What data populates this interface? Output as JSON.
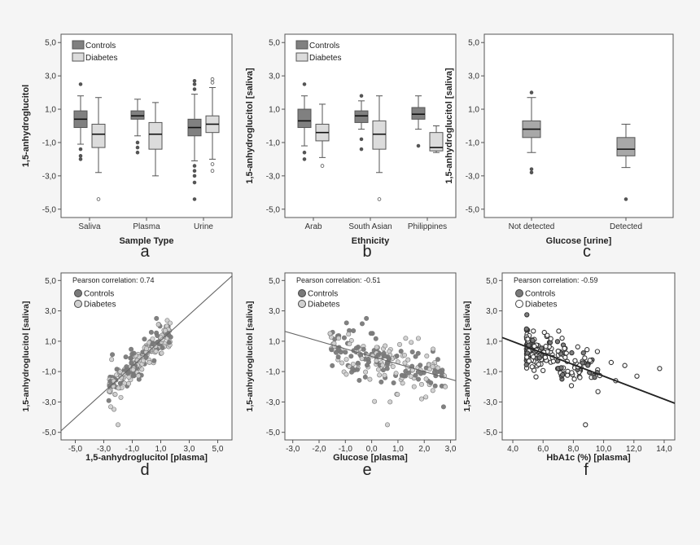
{
  "chart_data": [
    {
      "panel": "a",
      "type": "boxplot",
      "ylabel": "1,5-anhydroglucitol",
      "xlabel": "Sample Type",
      "yticks": [
        "5,0",
        "3,0",
        "1,0",
        "-1,0",
        "-3,0",
        "-5,0"
      ],
      "ylim": [
        -5.5,
        5.5
      ],
      "categories": [
        "Saliva",
        "Plasma",
        "Urine"
      ],
      "legend": [
        {
          "name": "Controls",
          "color": "#808080"
        },
        {
          "name": "Diabetes",
          "color": "#dcdcdc"
        }
      ],
      "boxes": [
        {
          "cat": 0,
          "series": 0,
          "whislo": -1.1,
          "q1": -0.1,
          "med": 0.4,
          "q3": 0.9,
          "whishi": 1.8,
          "outliers": [
            2.5,
            -1.4,
            -1.8,
            -2.0
          ]
        },
        {
          "cat": 0,
          "series": 1,
          "whislo": -2.8,
          "q1": -1.3,
          "med": -0.5,
          "q3": 0.1,
          "whishi": 1.7,
          "outliers": [
            -4.4
          ]
        },
        {
          "cat": 1,
          "series": 0,
          "whislo": -0.6,
          "q1": 0.4,
          "med": 0.6,
          "q3": 0.9,
          "whishi": 1.6,
          "outliers": [
            -1.0,
            -1.3,
            -1.6
          ]
        },
        {
          "cat": 1,
          "series": 1,
          "whislo": -3.0,
          "q1": -1.4,
          "med": -0.5,
          "q3": 0.2,
          "whishi": 1.4,
          "outliers": []
        },
        {
          "cat": 2,
          "series": 0,
          "whislo": -2.1,
          "q1": -0.6,
          "med": -0.1,
          "q3": 0.4,
          "whishi": 1.9,
          "outliers": [
            2.2,
            2.5,
            2.7,
            -2.4,
            -2.7,
            -3.0,
            -3.4,
            -4.4
          ]
        },
        {
          "cat": 2,
          "series": 1,
          "whislo": -2.0,
          "q1": -0.4,
          "med": 0.1,
          "q3": 0.6,
          "whishi": 2.3,
          "outliers": [
            2.6,
            2.8,
            -2.3,
            -2.7
          ]
        }
      ]
    },
    {
      "panel": "b",
      "type": "boxplot",
      "ylabel": "1,5-anhydroglucitol [saliva]",
      "xlabel": "Ethnicity",
      "yticks": [
        "5,0",
        "3,0",
        "1,0",
        "-1,0",
        "-3,0",
        "-5,0"
      ],
      "ylim": [
        -5.5,
        5.5
      ],
      "categories": [
        "Arab",
        "South Asian",
        "Philippines"
      ],
      "legend": [
        {
          "name": "Controls",
          "color": "#808080"
        },
        {
          "name": "Diabetes",
          "color": "#dcdcdc"
        }
      ],
      "boxes": [
        {
          "cat": 0,
          "series": 0,
          "whislo": -1.2,
          "q1": -0.1,
          "med": 0.3,
          "q3": 1.0,
          "whishi": 1.8,
          "outliers": [
            2.5,
            -1.6,
            -2.0
          ]
        },
        {
          "cat": 0,
          "series": 1,
          "whislo": -1.9,
          "q1": -0.9,
          "med": -0.4,
          "q3": 0.1,
          "whishi": 1.3,
          "outliers": [
            -2.4
          ]
        },
        {
          "cat": 1,
          "series": 0,
          "whislo": -0.2,
          "q1": 0.2,
          "med": 0.6,
          "q3": 0.9,
          "whishi": 1.5,
          "outliers": [
            1.8,
            -0.8,
            -1.4
          ]
        },
        {
          "cat": 1,
          "series": 1,
          "whislo": -2.8,
          "q1": -1.4,
          "med": -0.5,
          "q3": 0.3,
          "whishi": 1.8,
          "outliers": [
            -4.4
          ]
        },
        {
          "cat": 2,
          "series": 0,
          "whislo": -0.2,
          "q1": 0.4,
          "med": 0.7,
          "q3": 1.1,
          "whishi": 1.8,
          "outliers": [
            -1.2
          ]
        },
        {
          "cat": 2,
          "series": 1,
          "whislo": -1.6,
          "q1": -1.5,
          "med": -1.3,
          "q3": -0.4,
          "whishi": 0.0,
          "outliers": []
        }
      ]
    },
    {
      "panel": "c",
      "type": "boxplot",
      "ylabel": "1,5-anhydroglucitol [saliva]",
      "xlabel": "Glucose [urine]",
      "yticks": [
        "5,0",
        "3,0",
        "1,0",
        "-1,0",
        "-3,0",
        "-5,0"
      ],
      "ylim": [
        -5.5,
        5.5
      ],
      "categories": [
        "Not detected",
        "Detected"
      ],
      "legend": [],
      "boxes": [
        {
          "cat": 0,
          "series": 0,
          "whislo": -1.6,
          "q1": -0.7,
          "med": -0.2,
          "q3": 0.3,
          "whishi": 1.7,
          "outliers": [
            2.0,
            -2.6,
            -2.8
          ]
        },
        {
          "cat": 1,
          "series": 0,
          "whislo": -2.5,
          "q1": -1.8,
          "med": -1.4,
          "q3": -0.7,
          "whishi": 0.1,
          "outliers": [
            -4.4
          ]
        }
      ]
    },
    {
      "panel": "d",
      "type": "scatter",
      "ylabel": "1,5-anhydroglucitol [saliva]",
      "xlabel": "1,5-anhydroglucitol [plasma]",
      "xticks": [
        "-5,0",
        "-3,0",
        "-1,0",
        "1,0",
        "3,0",
        "5,0"
      ],
      "xlim": [
        -6,
        6
      ],
      "yticks": [
        "5,0",
        "3,0",
        "1,0",
        "-1,0",
        "-3,0",
        "-5,0"
      ],
      "ylim": [
        -5.5,
        5.5
      ],
      "annotation": "Pearson correlation: 0.74",
      "legend": [
        {
          "name": "Controls",
          "color": "#7a7a7a"
        },
        {
          "name": "Diabetes",
          "color": "#d0d0d0"
        }
      ],
      "fit": {
        "slope": 0.85,
        "intercept": 0.2
      },
      "cloud": {
        "seed": 11,
        "n": 200,
        "xmin": -2.7,
        "xmax": 1.7,
        "slope": 0.85,
        "intercept": 0.2,
        "sd": 0.55,
        "split": 0.45
      },
      "extra_points": [
        {
          "x": 0.7,
          "y": 2.5,
          "s": 0
        },
        {
          "x": -2.2,
          "y": -2.5,
          "s": 1
        },
        {
          "x": -1.8,
          "y": -2.7,
          "s": 1
        },
        {
          "x": -2.0,
          "y": -4.5,
          "s": 1
        },
        {
          "x": -2.6,
          "y": -2.3,
          "s": 1
        }
      ]
    },
    {
      "panel": "e",
      "type": "scatter",
      "ylabel": "1,5-anhydroglucitol [saliva]",
      "xlabel": "Glucose [plasma]",
      "xticks": [
        "-3,0",
        "-2,0",
        "-1,0",
        "0,0",
        "1,0",
        "2,0",
        "3,0"
      ],
      "xlim": [
        -3.3,
        3.2
      ],
      "yticks": [
        "5,0",
        "3,0",
        "1,0",
        "-1,0",
        "-3,0",
        "-5,0"
      ],
      "ylim": [
        -5.5,
        5.5
      ],
      "annotation": "Pearson correlation: -0.51",
      "legend": [
        {
          "name": "Controls",
          "color": "#7a7a7a"
        },
        {
          "name": "Diabetes",
          "color": "#d0d0d0"
        }
      ],
      "fit": {
        "slope": -0.5,
        "intercept": 0.0
      },
      "cloud": {
        "seed": 23,
        "n": 200,
        "xmin": -1.6,
        "xmax": 2.8,
        "slope": -0.5,
        "intercept": 0.0,
        "sd": 0.8,
        "split": 0.5
      },
      "extra_points": [
        {
          "x": 0.6,
          "y": -4.5,
          "s": 1
        },
        {
          "x": -0.2,
          "y": 2.5,
          "s": 0
        },
        {
          "x": 2.8,
          "y": -2.0,
          "s": 1
        },
        {
          "x": 1.9,
          "y": -2.8,
          "s": 1
        },
        {
          "x": 0.7,
          "y": -3.0,
          "s": 1
        }
      ]
    },
    {
      "panel": "f",
      "type": "scatter",
      "ylabel": "1,5-anhydroglucitol [saliva]",
      "xlabel": "HbA1c (%) [plasma]",
      "xticks": [
        "4,0",
        "6,0",
        "8,0",
        "10,0",
        "12,0",
        "14,0"
      ],
      "xlim": [
        3.3,
        14.7
      ],
      "yticks": [
        "5,0",
        "3,0",
        "1,0",
        "-1,0",
        "-3,0",
        "-5,0"
      ],
      "ylim": [
        -5.5,
        5.5
      ],
      "annotation": "Pearson correlation: -0.59",
      "legend": [
        {
          "name": "Controls",
          "color": "#7a7a7a"
        },
        {
          "name": "Diabetes",
          "color": "#ffffff"
        }
      ],
      "fit": {
        "slope": -0.38,
        "intercept": 2.5
      },
      "cloud": {
        "seed": 37,
        "n": 190,
        "xmin": 4.9,
        "xmax": 9.8,
        "slope": -0.38,
        "intercept": 2.5,
        "sd": 0.7,
        "split": 0.35,
        "skew": 1.8
      },
      "extra_points": [
        {
          "x": 10.5,
          "y": -0.4,
          "s": 1
        },
        {
          "x": 11.4,
          "y": -0.6,
          "s": 1
        },
        {
          "x": 12.2,
          "y": -1.3,
          "s": 1
        },
        {
          "x": 13.7,
          "y": -0.8,
          "s": 1
        },
        {
          "x": 8.8,
          "y": -4.5,
          "s": 1
        },
        {
          "x": 10.8,
          "y": -1.6,
          "s": 1
        }
      ]
    }
  ],
  "panel_labels": [
    "a",
    "b",
    "c",
    "d",
    "e",
    "f"
  ]
}
